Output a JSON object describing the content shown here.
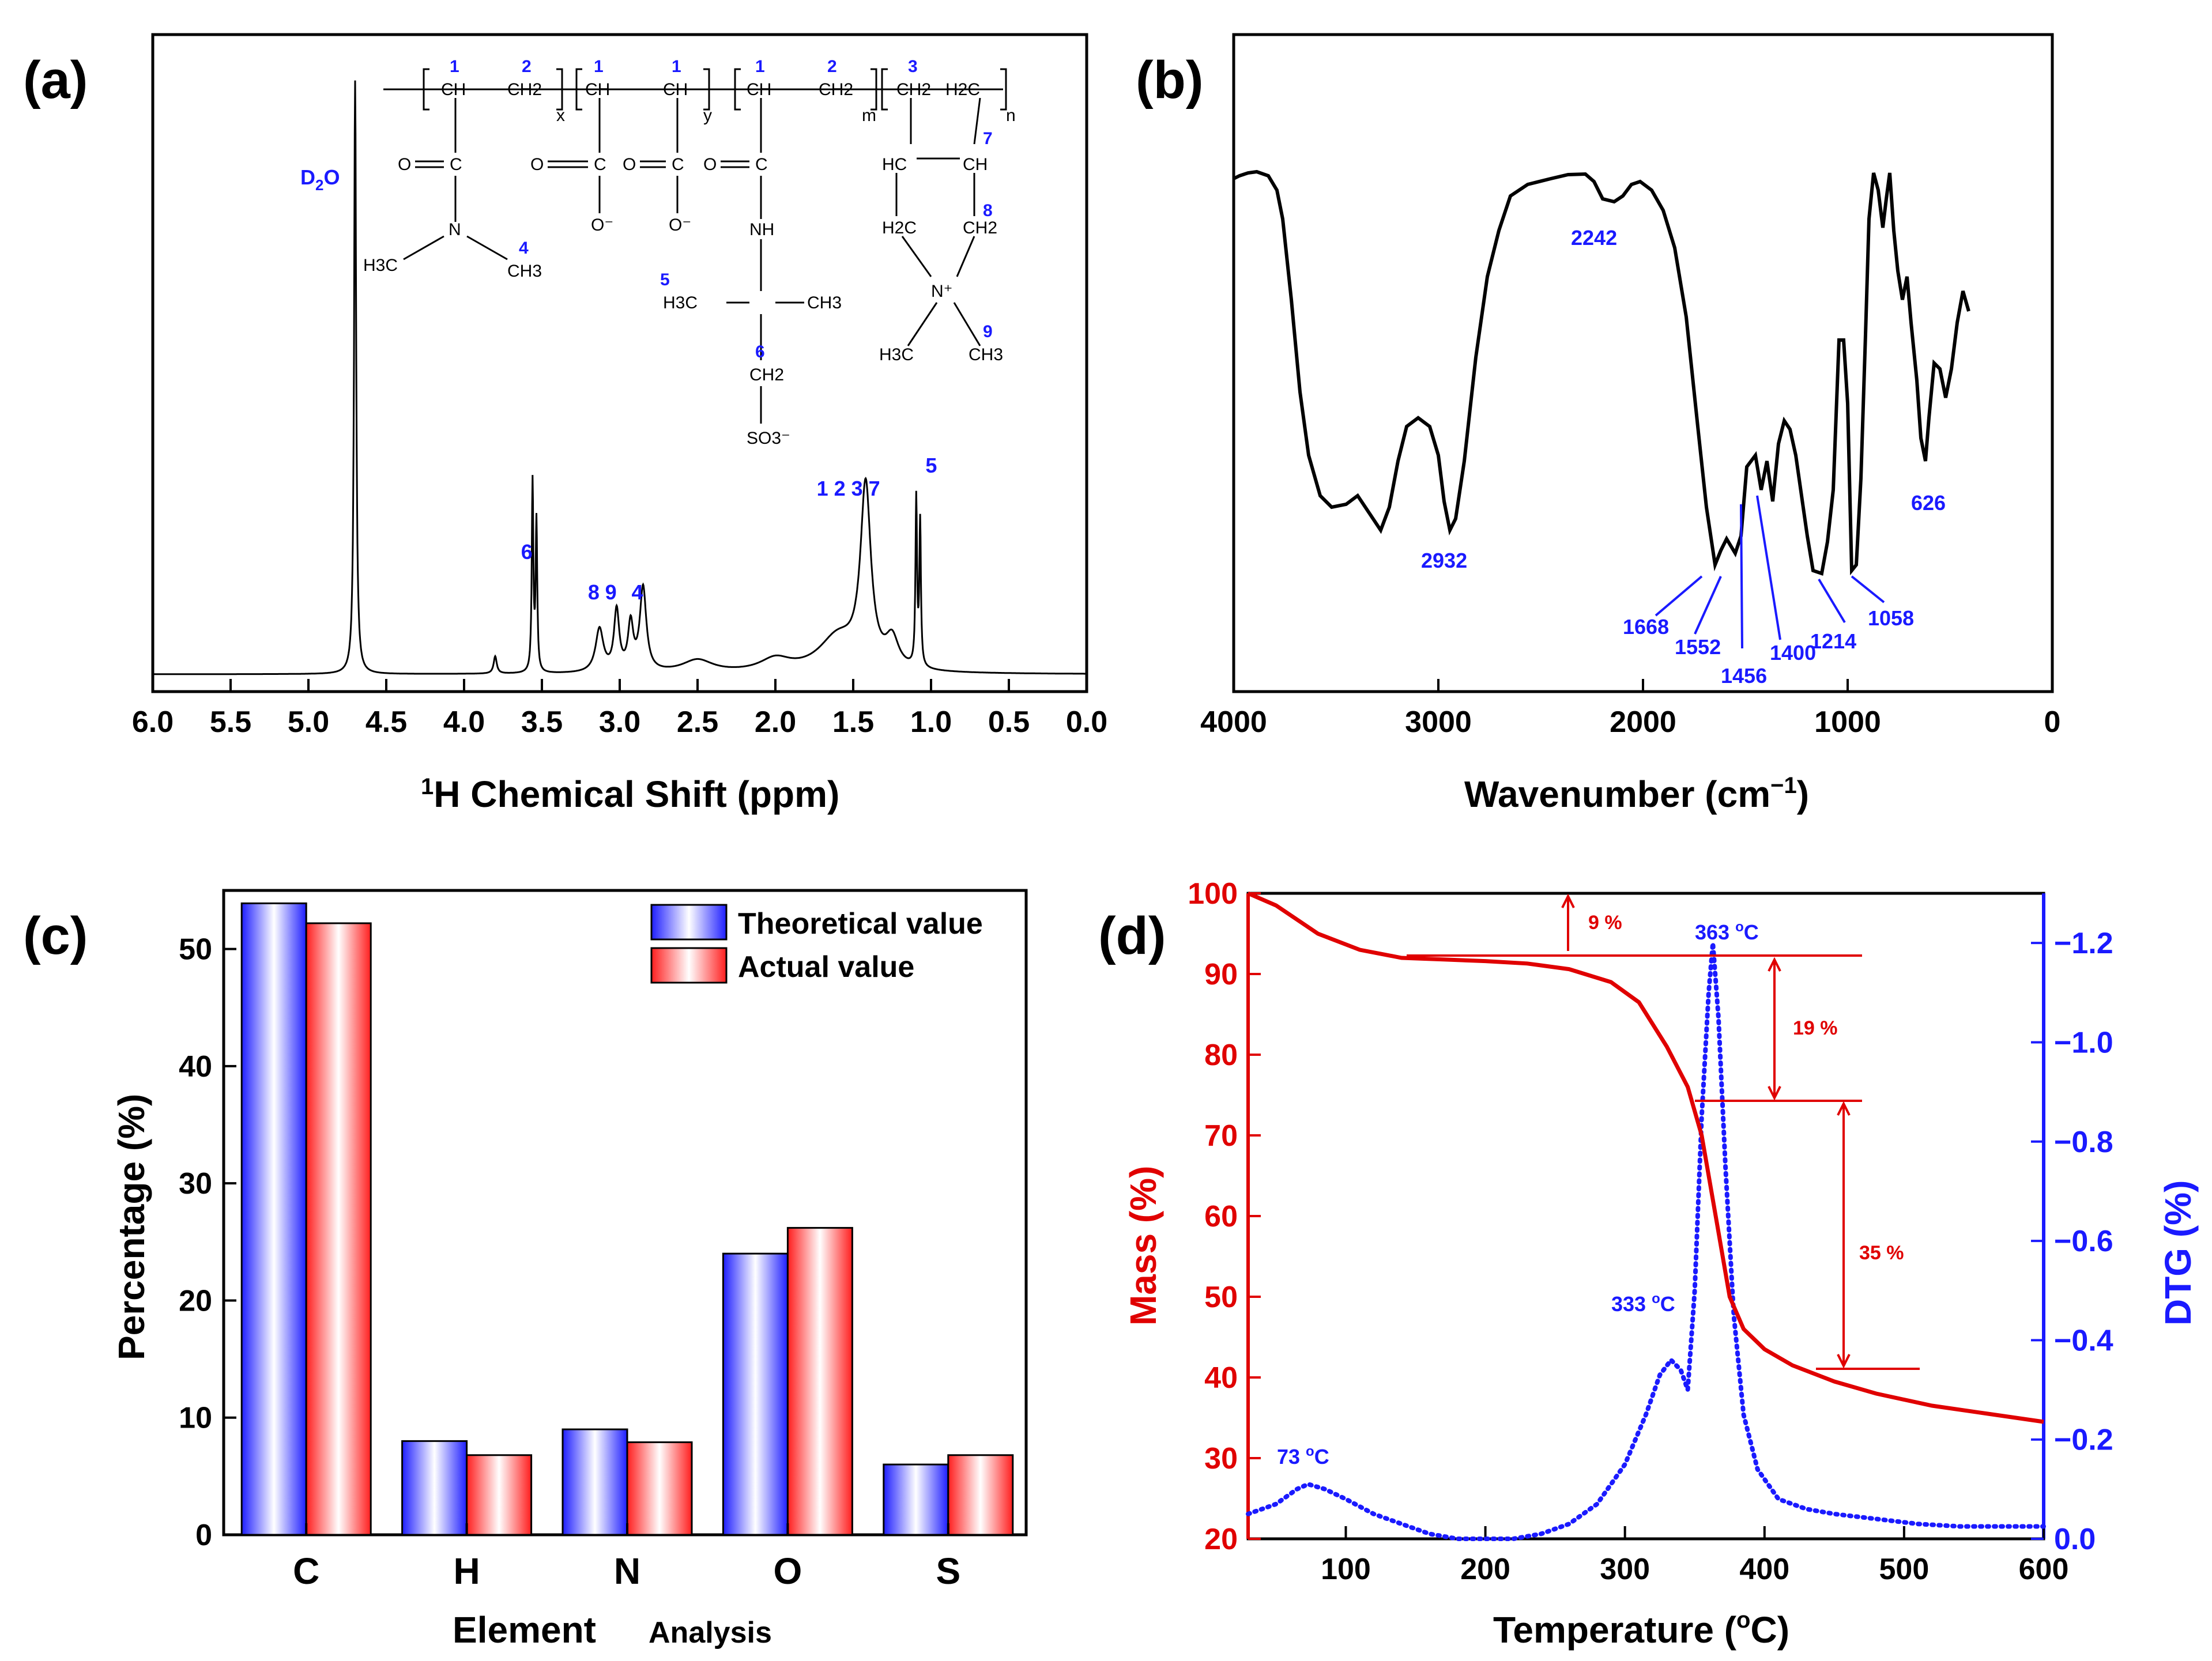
{
  "colors": {
    "axis": "#000000",
    "nmr": "#000000",
    "ir": "#000000",
    "annotation_blue": "#1a1aff",
    "tg_red": "#e00000",
    "dtg_blue": "#1a1aff",
    "bar_blue": "#1e1eff",
    "bar_red": "#ff1e1e"
  },
  "chart_data": [
    {
      "id": "a",
      "panel_label": "(a)",
      "type": "line",
      "title": "",
      "xlabel_sup": "1",
      "xlabel": "H Chemical Shift (ppm)",
      "xlim": [
        6.0,
        0.0
      ],
      "xticks": [
        "6.0",
        "5.5",
        "5.0",
        "4.5",
        "4.0",
        "3.5",
        "3.0",
        "2.5",
        "2.0",
        "1.5",
        "1.0",
        "0.5",
        "0.0"
      ],
      "peaks": [
        {
          "x": 4.7,
          "label": "D2O",
          "label_main": "D",
          "label_sub": "2",
          "label_tail": "O"
        },
        {
          "x": 3.56,
          "label": "6"
        },
        {
          "x": 3.13,
          "label": "8"
        },
        {
          "x": 3.02,
          "label": "9"
        },
        {
          "x": 2.85,
          "label": "4"
        },
        {
          "x": 1.42,
          "label": "1 2 3 7"
        },
        {
          "x": 1.08,
          "label": "5"
        }
      ],
      "structure_labels": {
        "units": [
          "x",
          "y",
          "m",
          "n"
        ],
        "carbon_numbers": [
          "1",
          "2",
          "1",
          "1",
          "1",
          "2",
          "3",
          "7",
          "4",
          "5",
          "6",
          "8",
          "9"
        ],
        "groups": [
          "CH",
          "CH2",
          "CH",
          "CH",
          "CH",
          "CH2",
          "CH2",
          "H2C",
          "CH",
          "HC",
          "CH2",
          "H2C",
          "O",
          "O",
          "O",
          "O",
          "C",
          "C",
          "C",
          "C",
          "N",
          "NH",
          "H3C",
          "CH3",
          "H3C",
          "CH3",
          "CH2",
          "SO3⁻",
          "O⁻",
          "O⁻",
          "N⁺",
          "H3C",
          "CH3"
        ]
      }
    },
    {
      "id": "b",
      "panel_label": "(b)",
      "type": "line",
      "title": "",
      "xlabel": "Wavenumber (cm",
      "xlabel_sup": "−1",
      "xlabel_tail": ")",
      "xlim": [
        4000,
        0
      ],
      "xticks": [
        "4000",
        "3000",
        "2000",
        "1000",
        "0"
      ],
      "bands": [
        "2932",
        "2242",
        "1668",
        "1552",
        "1456",
        "1400",
        "1214",
        "1058",
        "626"
      ]
    },
    {
      "id": "c",
      "panel_label": "(c)",
      "type": "bar",
      "title": "",
      "xlabel": "Element",
      "xlabel_extra": "Analysis",
      "ylabel": "Percentage (%)",
      "ylim": [
        0,
        55
      ],
      "yticks": [
        "0",
        "10",
        "20",
        "30",
        "40",
        "50"
      ],
      "categories": [
        "C",
        "H",
        "N",
        "O",
        "S"
      ],
      "series": [
        {
          "name": "Theoretical value",
          "values": [
            53.9,
            8.0,
            9.0,
            24.0,
            6.0
          ]
        },
        {
          "name": "Actual value",
          "values": [
            52.2,
            6.8,
            7.9,
            26.2,
            6.8
          ]
        }
      ],
      "legend": "top-right"
    },
    {
      "id": "d",
      "panel_label": "(d)",
      "type": "line",
      "title": "",
      "xlabel": "Temperature (",
      "xlabel_sup": "o",
      "xlabel_tail": "C)",
      "ylabel_left": "Mass (%)",
      "ylabel_right": "DTG (%)",
      "xlim": [
        30,
        600
      ],
      "xticks": [
        "100",
        "200",
        "300",
        "400",
        "500",
        "600"
      ],
      "ylim_left": [
        20,
        100
      ],
      "yticks_left": [
        "20",
        "30",
        "40",
        "50",
        "60",
        "70",
        "80",
        "90",
        "100"
      ],
      "ylim_right": [
        0.0,
        -1.3
      ],
      "yticks_right": [
        "0.0",
        "−0.2",
        "−0.4",
        "−0.6",
        "−0.8",
        "−1.0",
        "−1.2"
      ],
      "mass_loss_labels": [
        "9 %",
        "19 %",
        "35 %"
      ],
      "peak_labels": [
        {
          "text": "73 ",
          "sup": "o",
          "tail": "C",
          "x": 73
        },
        {
          "text": "333 ",
          "sup": "o",
          "tail": "C",
          "x": 333
        },
        {
          "text": "363 ",
          "sup": "o",
          "tail": "C",
          "x": 363
        }
      ],
      "mass_series": {
        "name": "",
        "x": [
          30,
          50,
          80,
          110,
          140,
          170,
          200,
          230,
          260,
          290,
          310,
          330,
          345,
          355,
          365,
          375,
          385,
          400,
          420,
          450,
          480,
          520,
          560,
          600
        ],
        "y": [
          100,
          98.5,
          95,
          93,
          92,
          91.8,
          91.6,
          91.3,
          90.6,
          89,
          86.5,
          81,
          76,
          70,
          60,
          50,
          46,
          43.5,
          41.5,
          39.5,
          38,
          36.5,
          35.5,
          34.5
        ]
      },
      "dtg_series": {
        "name": "",
        "x": [
          30,
          50,
          65,
          73,
          85,
          100,
          120,
          140,
          160,
          180,
          200,
          220,
          240,
          260,
          280,
          300,
          315,
          325,
          333,
          340,
          345,
          350,
          355,
          360,
          363,
          367,
          372,
          378,
          385,
          395,
          410,
          430,
          450,
          480,
          510,
          540,
          570,
          600
        ],
        "y": [
          -0.05,
          -0.07,
          -0.1,
          -0.11,
          -0.1,
          -0.08,
          -0.05,
          -0.03,
          -0.01,
          0.0,
          0.0,
          0.0,
          -0.01,
          -0.03,
          -0.07,
          -0.15,
          -0.25,
          -0.33,
          -0.36,
          -0.34,
          -0.3,
          -0.5,
          -0.85,
          -1.1,
          -1.2,
          -1.05,
          -0.75,
          -0.45,
          -0.25,
          -0.14,
          -0.08,
          -0.06,
          -0.05,
          -0.04,
          -0.03,
          -0.025,
          -0.025,
          -0.025
        ]
      }
    }
  ]
}
